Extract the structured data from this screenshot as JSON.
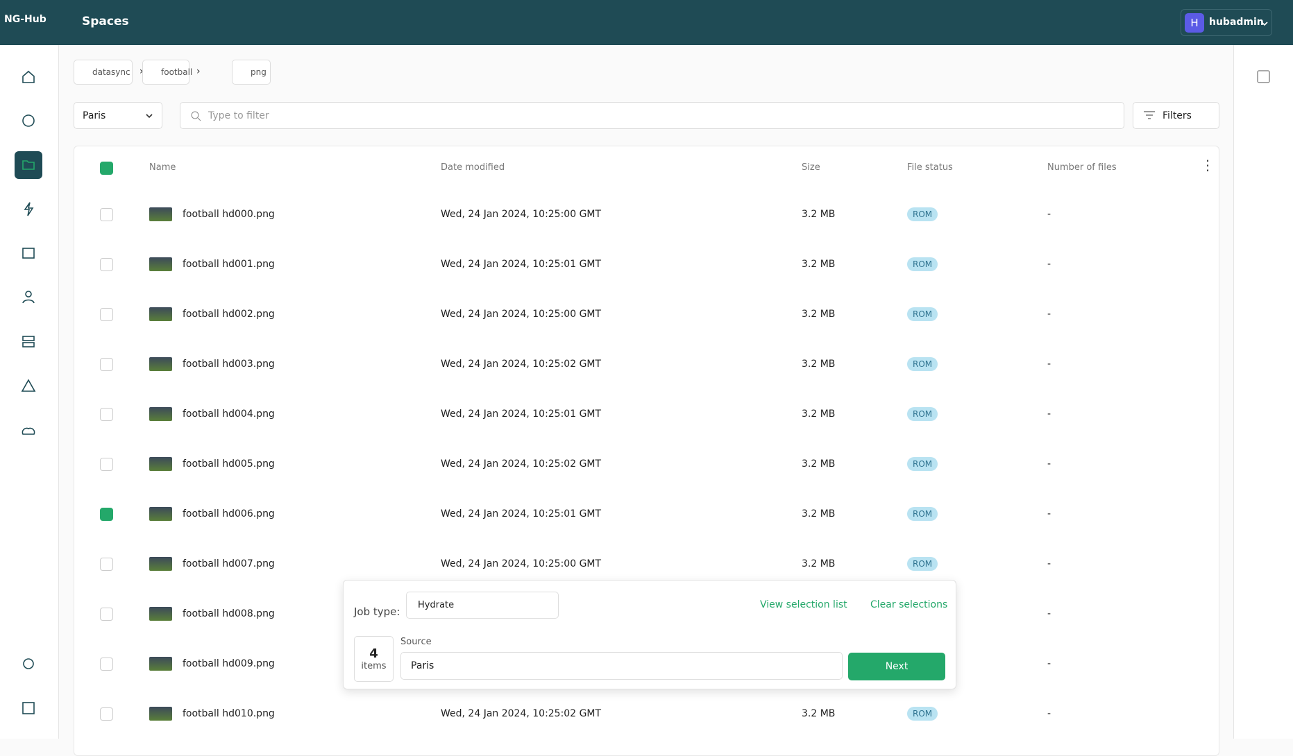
{
  "header": {
    "logo": "NG-Hub",
    "title": "Spaces",
    "user_initial": "H",
    "user": "hubadmin"
  },
  "breadcrumbs": [
    "datasync",
    "football",
    "png"
  ],
  "location": "Paris",
  "filter_placeholder": "Type to filter",
  "filters": "Filters",
  "table": {
    "columns": [
      "Name",
      "Date modified",
      "Size",
      "File status",
      "Number of files"
    ],
    "rows": [
      {
        "name": "football hd000.png",
        "date": "Wed, 24 Jan 2024, 10:25:00 GMT",
        "size": "3.2 MB",
        "status": "ROM",
        "files": "-",
        "selected": false
      },
      {
        "name": "football hd001.png",
        "date": "Wed, 24 Jan 2024, 10:25:01 GMT",
        "size": "3.2 MB",
        "status": "ROM",
        "files": "-",
        "selected": false
      },
      {
        "name": "football hd002.png",
        "date": "Wed, 24 Jan 2024, 10:25:00 GMT",
        "size": "3.2 MB",
        "status": "ROM",
        "files": "-",
        "selected": false
      },
      {
        "name": "football hd003.png",
        "date": "Wed, 24 Jan 2024, 10:25:02 GMT",
        "size": "3.2 MB",
        "status": "ROM",
        "files": "-",
        "selected": false
      },
      {
        "name": "football hd004.png",
        "date": "Wed, 24 Jan 2024, 10:25:01 GMT",
        "size": "3.2 MB",
        "status": "ROM",
        "files": "-",
        "selected": false
      },
      {
        "name": "football hd005.png",
        "date": "Wed, 24 Jan 2024, 10:25:02 GMT",
        "size": "3.2 MB",
        "status": "ROM",
        "files": "-",
        "selected": false
      },
      {
        "name": "football hd006.png",
        "date": "Wed, 24 Jan 2024, 10:25:01 GMT",
        "size": "3.2 MB",
        "status": "ROM",
        "files": "-",
        "selected": true
      },
      {
        "name": "football hd007.png",
        "date": "Wed, 24 Jan 2024, 10:25:00 GMT",
        "size": "3.2 MB",
        "status": "ROM",
        "files": "-",
        "selected": false
      },
      {
        "name": "football hd008.png",
        "date": "",
        "size": "",
        "status": "",
        "files": "-",
        "selected": false
      },
      {
        "name": "football hd009.png",
        "date": "",
        "size": "",
        "status": "",
        "files": "-",
        "selected": false
      },
      {
        "name": "football hd010.png",
        "date": "Wed, 24 Jan 2024, 10:25:02 GMT",
        "size": "3.2 MB",
        "status": "ROM",
        "files": "-",
        "selected": false
      }
    ]
  },
  "selection": {
    "job_type_label": "Job type:",
    "job_type": "Hydrate",
    "view_list": "View selection list",
    "clear": "Clear selections",
    "count": "4",
    "count_unit": "items",
    "source_label": "Source",
    "source": "Paris",
    "next": "Next"
  }
}
